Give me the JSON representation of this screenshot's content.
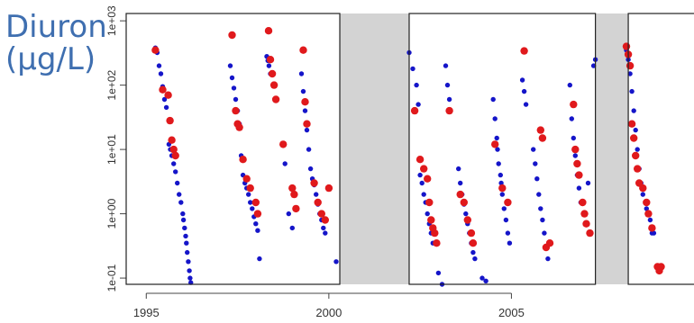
{
  "label": {
    "line1": "Diuron",
    "line2": "(µg/L)"
  },
  "chart_data": {
    "type": "scatter",
    "title": "",
    "xlabel": "",
    "ylabel": "",
    "y_scale": "log",
    "xlim": [
      1994.45,
      2010
    ],
    "ylim": [
      0.08,
      1300
    ],
    "x_ticks": [
      1995,
      2000,
      2005
    ],
    "x_tick_labels": [
      "1995",
      "2000",
      "2005"
    ],
    "y_ticks": [
      0.1,
      1,
      10,
      100,
      1000
    ],
    "y_tick_labels": [
      "1e-01",
      "1e+00",
      "1e+01",
      "1e+02",
      "1e+03"
    ],
    "grid": false,
    "legend": "none",
    "shaded_periods": [
      [
        2000.3,
        2002.2
      ],
      [
        2007.3,
        2008.2
      ]
    ],
    "colors": {
      "blue_series": "#1515c9",
      "red_series": "#e0191c",
      "shaded": "#d3d3d3",
      "label": "#3f6fb0"
    },
    "series": [
      {
        "marker": "blue",
        "points": [
          [
            1995.25,
            380
          ],
          [
            1995.3,
            320
          ],
          [
            1995.35,
            200
          ],
          [
            1995.4,
            150
          ],
          [
            1995.45,
            95
          ],
          [
            1995.5,
            60
          ],
          [
            1995.55,
            45
          ],
          [
            1995.62,
            12
          ],
          [
            1995.66,
            10
          ],
          [
            1995.7,
            8
          ],
          [
            1995.75,
            6
          ],
          [
            1995.8,
            4.5
          ],
          [
            1995.85,
            3
          ],
          [
            1995.9,
            2
          ],
          [
            1995.95,
            1.5
          ],
          [
            1996.0,
            1.0
          ],
          [
            1996.02,
            0.8
          ],
          [
            1996.05,
            0.6
          ],
          [
            1996.08,
            0.45
          ],
          [
            1996.1,
            0.35
          ],
          [
            1996.12,
            0.25
          ],
          [
            1996.15,
            0.18
          ],
          [
            1996.18,
            0.13
          ],
          [
            1996.2,
            0.1
          ],
          [
            1996.22,
            0.085
          ],
          [
            1997.3,
            200
          ],
          [
            1997.35,
            130
          ],
          [
            1997.4,
            90
          ],
          [
            1997.45,
            60
          ],
          [
            1997.5,
            40
          ],
          [
            1997.55,
            25
          ],
          [
            1997.6,
            8
          ],
          [
            1997.65,
            4
          ],
          [
            1997.7,
            3
          ],
          [
            1997.75,
            2.5
          ],
          [
            1997.8,
            2
          ],
          [
            1997.85,
            1.5
          ],
          [
            1997.9,
            1.2
          ],
          [
            1997.95,
            0.9
          ],
          [
            1998.0,
            0.7
          ],
          [
            1998.05,
            0.55
          ],
          [
            1998.1,
            0.2
          ],
          [
            1998.3,
            280
          ],
          [
            1998.33,
            240
          ],
          [
            1998.36,
            200
          ],
          [
            1998.4,
            150
          ],
          [
            1998.8,
            6
          ],
          [
            1998.9,
            1.0
          ],
          [
            1999.0,
            0.6
          ],
          [
            1999.25,
            150
          ],
          [
            1999.3,
            80
          ],
          [
            1999.35,
            40
          ],
          [
            1999.4,
            20
          ],
          [
            1999.45,
            10
          ],
          [
            1999.5,
            5
          ],
          [
            1999.55,
            3.5
          ],
          [
            1999.6,
            2.8
          ],
          [
            1999.65,
            2
          ],
          [
            1999.7,
            1.4
          ],
          [
            1999.75,
            1.0
          ],
          [
            1999.8,
            0.8
          ],
          [
            1999.85,
            0.6
          ],
          [
            1999.9,
            0.5
          ],
          [
            2000.2,
            0.18
          ],
          [
            2002.2,
            320
          ],
          [
            2002.3,
            180
          ],
          [
            2002.4,
            100
          ],
          [
            2002.45,
            50
          ],
          [
            2002.5,
            4
          ],
          [
            2002.55,
            3
          ],
          [
            2002.6,
            2
          ],
          [
            2002.65,
            1.5
          ],
          [
            2002.7,
            1.0
          ],
          [
            2002.75,
            0.7
          ],
          [
            2002.8,
            0.5
          ],
          [
            2002.85,
            0.35
          ],
          [
            2003.0,
            0.12
          ],
          [
            2003.1,
            0.08
          ],
          [
            2003.2,
            200
          ],
          [
            2003.25,
            100
          ],
          [
            2003.3,
            60
          ],
          [
            2003.55,
            5
          ],
          [
            2003.6,
            3
          ],
          [
            2003.65,
            2
          ],
          [
            2003.7,
            1.4
          ],
          [
            2003.75,
            1.0
          ],
          [
            2003.8,
            0.7
          ],
          [
            2003.85,
            0.5
          ],
          [
            2003.9,
            0.35
          ],
          [
            2003.95,
            0.25
          ],
          [
            2004.0,
            0.2
          ],
          [
            2004.2,
            0.1
          ],
          [
            2004.3,
            0.09
          ],
          [
            2004.5,
            60
          ],
          [
            2004.55,
            30
          ],
          [
            2004.6,
            15
          ],
          [
            2004.62,
            10
          ],
          [
            2004.65,
            6
          ],
          [
            2004.7,
            4
          ],
          [
            2004.72,
            3
          ],
          [
            2004.75,
            2
          ],
          [
            2004.8,
            1.2
          ],
          [
            2004.85,
            0.8
          ],
          [
            2004.9,
            0.5
          ],
          [
            2004.95,
            0.35
          ],
          [
            2005.3,
            120
          ],
          [
            2005.35,
            80
          ],
          [
            2005.4,
            50
          ],
          [
            2005.6,
            10
          ],
          [
            2005.65,
            6
          ],
          [
            2005.7,
            3.5
          ],
          [
            2005.75,
            2
          ],
          [
            2005.8,
            1.2
          ],
          [
            2005.85,
            0.8
          ],
          [
            2005.9,
            0.5
          ],
          [
            2005.95,
            0.3
          ],
          [
            2006.0,
            0.2
          ],
          [
            2006.6,
            100
          ],
          [
            2006.65,
            30
          ],
          [
            2006.7,
            15
          ],
          [
            2006.75,
            8
          ],
          [
            2006.8,
            4
          ],
          [
            2006.85,
            2.5
          ],
          [
            2006.9,
            1.5
          ],
          [
            2007.1,
            3
          ],
          [
            2007.25,
            200
          ],
          [
            2007.3,
            250
          ],
          [
            2008.15,
            350
          ],
          [
            2008.2,
            250
          ],
          [
            2008.25,
            150
          ],
          [
            2008.3,
            80
          ],
          [
            2008.35,
            40
          ],
          [
            2008.4,
            20
          ],
          [
            2008.45,
            10
          ],
          [
            2008.5,
            5
          ],
          [
            2008.55,
            3
          ],
          [
            2008.6,
            2
          ],
          [
            2008.7,
            1.2
          ],
          [
            2008.8,
            0.8
          ],
          [
            2008.85,
            0.5
          ],
          [
            2008.9,
            0.5
          ]
        ]
      },
      {
        "marker": "red",
        "points": [
          [
            1995.25,
            350
          ],
          [
            1995.45,
            85
          ],
          [
            1995.6,
            70
          ],
          [
            1995.65,
            28
          ],
          [
            1995.7,
            14
          ],
          [
            1995.75,
            10
          ],
          [
            1995.8,
            8
          ],
          [
            1997.35,
            600
          ],
          [
            1997.45,
            40
          ],
          [
            1997.5,
            25
          ],
          [
            1997.55,
            22
          ],
          [
            1997.65,
            7
          ],
          [
            1997.75,
            3.5
          ],
          [
            1997.85,
            2.5
          ],
          [
            1998.0,
            1.5
          ],
          [
            1998.05,
            1.0
          ],
          [
            1998.35,
            700
          ],
          [
            1998.4,
            250
          ],
          [
            1998.45,
            150
          ],
          [
            1998.5,
            100
          ],
          [
            1998.55,
            60
          ],
          [
            1998.75,
            12
          ],
          [
            1999.0,
            2.5
          ],
          [
            1999.05,
            2.0
          ],
          [
            1999.1,
            1.2
          ],
          [
            1999.3,
            350
          ],
          [
            1999.35,
            55
          ],
          [
            1999.4,
            25
          ],
          [
            1999.6,
            3
          ],
          [
            1999.7,
            1.5
          ],
          [
            1999.8,
            1.0
          ],
          [
            1999.9,
            0.8
          ],
          [
            2000.0,
            2.5
          ],
          [
            2002.35,
            40
          ],
          [
            2002.5,
            7
          ],
          [
            2002.6,
            5
          ],
          [
            2002.7,
            3.5
          ],
          [
            2002.75,
            1.5
          ],
          [
            2002.8,
            0.8
          ],
          [
            2002.85,
            0.6
          ],
          [
            2002.9,
            0.5
          ],
          [
            2002.95,
            0.35
          ],
          [
            2003.3,
            40
          ],
          [
            2003.6,
            2
          ],
          [
            2003.7,
            1.5
          ],
          [
            2003.8,
            0.8
          ],
          [
            2003.9,
            0.5
          ],
          [
            2003.95,
            0.35
          ],
          [
            2004.55,
            12
          ],
          [
            2004.75,
            2.5
          ],
          [
            2004.9,
            1.5
          ],
          [
            2005.35,
            340
          ],
          [
            2005.8,
            20
          ],
          [
            2005.85,
            15
          ],
          [
            2005.95,
            0.3
          ],
          [
            2006.05,
            0.35
          ],
          [
            2006.7,
            50
          ],
          [
            2006.75,
            10
          ],
          [
            2006.8,
            6
          ],
          [
            2006.85,
            4
          ],
          [
            2006.95,
            1.5
          ],
          [
            2007.0,
            1.0
          ],
          [
            2007.05,
            0.7
          ],
          [
            2007.15,
            0.5
          ],
          [
            2008.15,
            400
          ],
          [
            2008.2,
            300
          ],
          [
            2008.25,
            200
          ],
          [
            2008.3,
            25
          ],
          [
            2008.35,
            15
          ],
          [
            2008.4,
            8
          ],
          [
            2008.45,
            5
          ],
          [
            2008.5,
            3
          ],
          [
            2008.6,
            2.5
          ],
          [
            2008.7,
            1.5
          ],
          [
            2008.75,
            1.0
          ],
          [
            2008.85,
            0.6
          ],
          [
            2009.0,
            0.15
          ],
          [
            2009.05,
            0.13
          ],
          [
            2009.1,
            0.15
          ]
        ]
      }
    ]
  }
}
